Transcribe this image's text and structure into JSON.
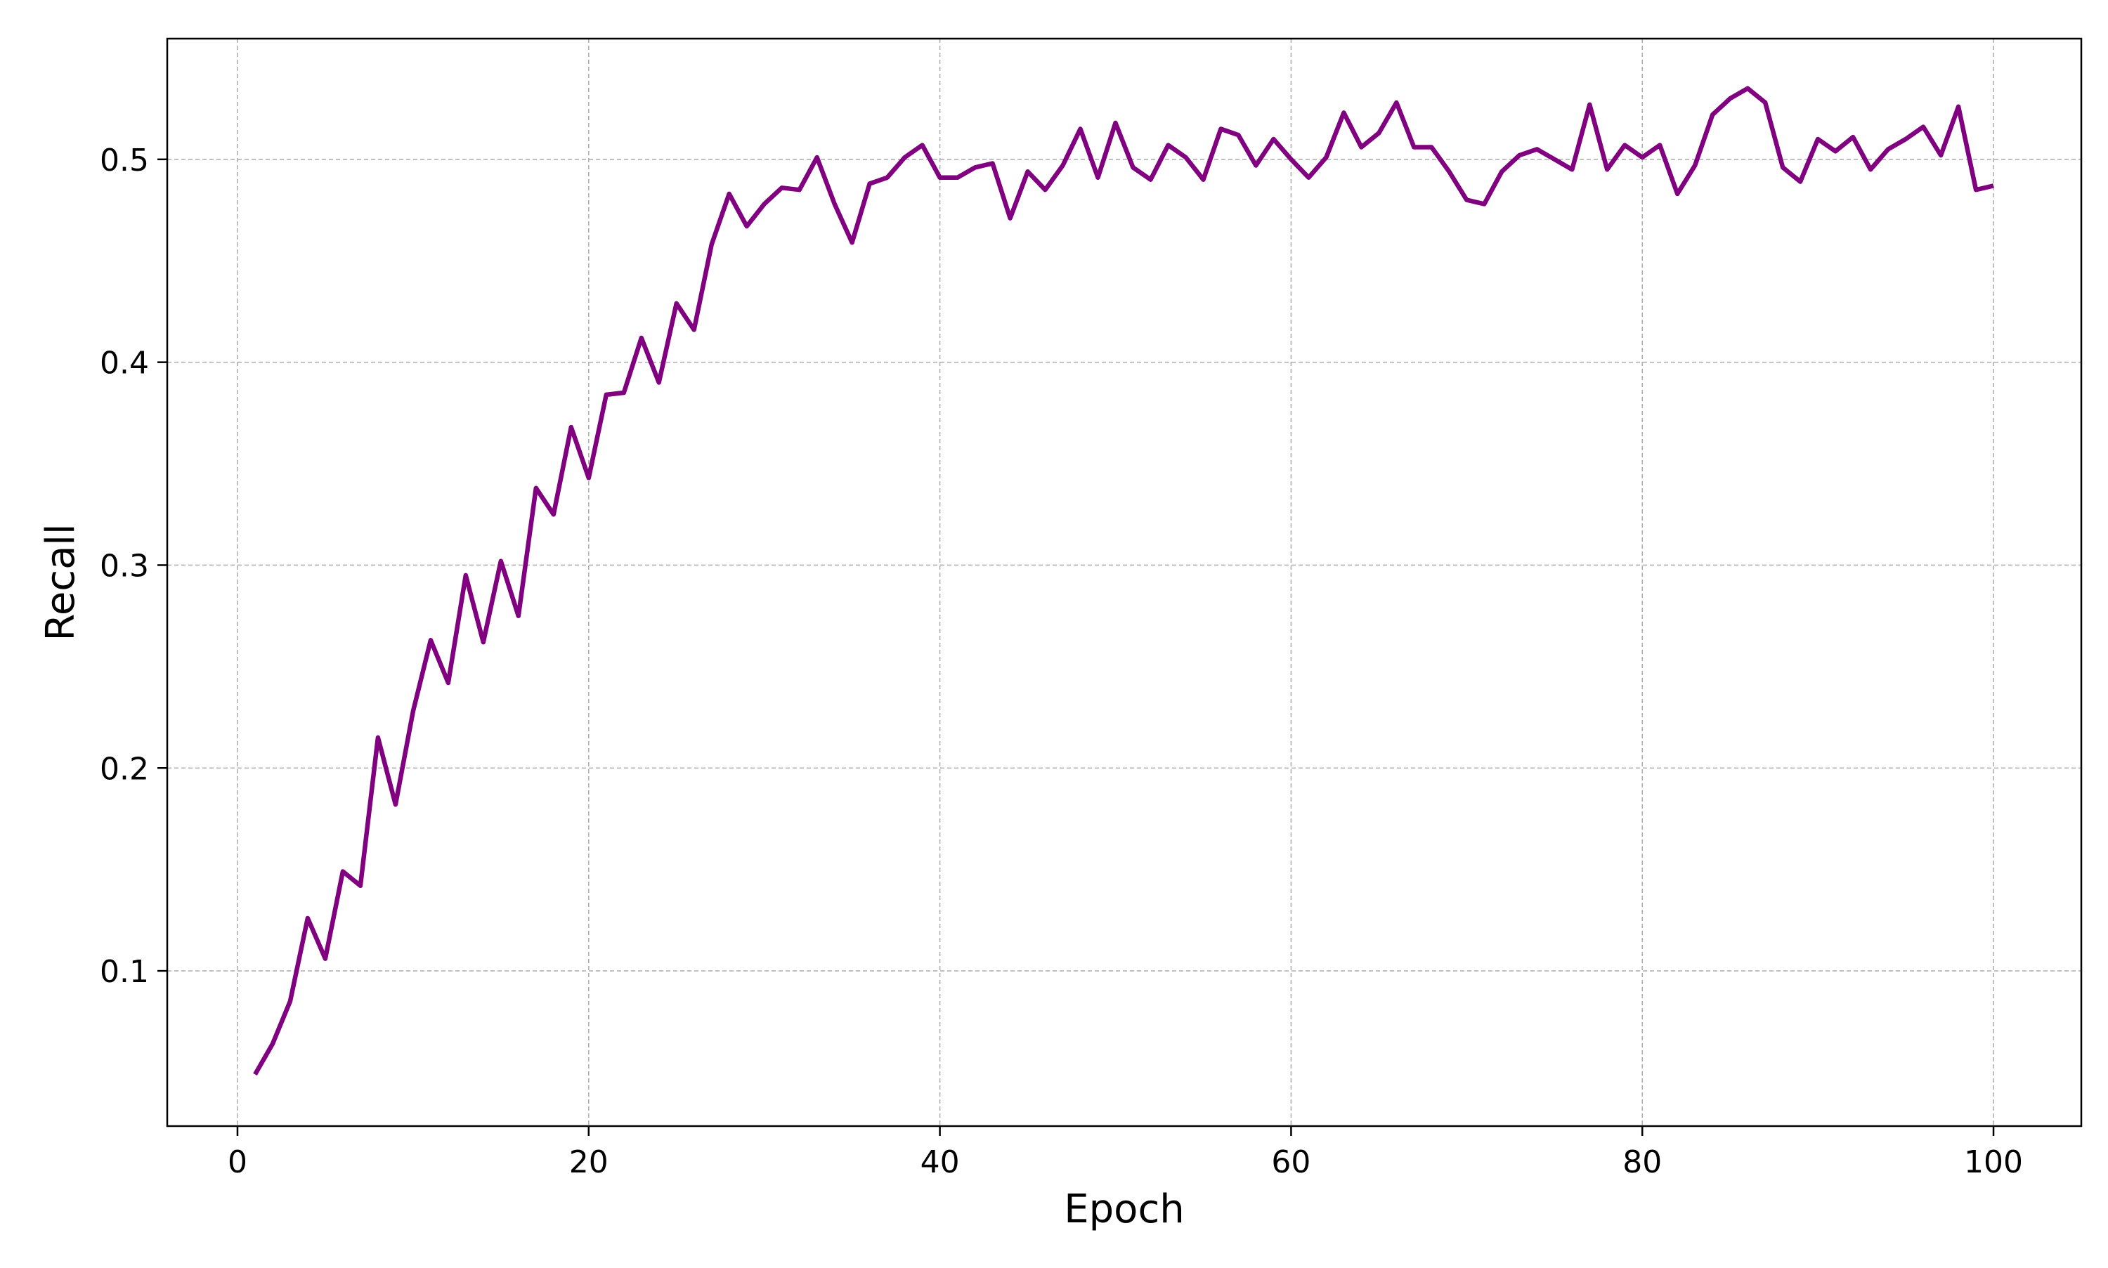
{
  "chart_data": {
    "type": "line",
    "title": "",
    "xlabel": "Epoch",
    "ylabel": "Recall",
    "xlim": [
      -4,
      105
    ],
    "ylim": [
      0.0235,
      0.5595
    ],
    "xticks": [
      0,
      20,
      40,
      60,
      80,
      100
    ],
    "yticks": [
      0.1,
      0.2,
      0.3,
      0.4,
      0.5
    ],
    "xtick_labels": [
      "0",
      "20",
      "40",
      "60",
      "80",
      "100"
    ],
    "ytick_labels": [
      "0.1",
      "0.2",
      "0.3",
      "0.4",
      "0.5"
    ],
    "grid": true,
    "series": [
      {
        "color": "#800080",
        "x": [
          1,
          2,
          3,
          4,
          5,
          6,
          7,
          8,
          9,
          10,
          11,
          12,
          13,
          14,
          15,
          16,
          17,
          18,
          19,
          20,
          21,
          22,
          23,
          24,
          25,
          26,
          27,
          28,
          29,
          30,
          31,
          32,
          33,
          34,
          35,
          36,
          37,
          38,
          39,
          40,
          41,
          42,
          43,
          44,
          45,
          46,
          47,
          48,
          49,
          50,
          51,
          52,
          53,
          54,
          55,
          56,
          57,
          58,
          59,
          60,
          61,
          62,
          63,
          64,
          65,
          66,
          67,
          68,
          69,
          70,
          71,
          72,
          73,
          74,
          75,
          76,
          77,
          78,
          79,
          80,
          81,
          82,
          83,
          84,
          85,
          86,
          87,
          88,
          89,
          90,
          91,
          92,
          93,
          94,
          95,
          96,
          97,
          98,
          99,
          100
        ],
        "y": [
          0.049,
          0.064,
          0.085,
          0.126,
          0.106,
          0.149,
          0.142,
          0.215,
          0.182,
          0.228,
          0.263,
          0.242,
          0.295,
          0.262,
          0.302,
          0.275,
          0.338,
          0.325,
          0.368,
          0.343,
          0.384,
          0.385,
          0.412,
          0.39,
          0.429,
          0.416,
          0.458,
          0.483,
          0.467,
          0.478,
          0.486,
          0.485,
          0.501,
          0.478,
          0.459,
          0.488,
          0.491,
          0.501,
          0.507,
          0.491,
          0.491,
          0.496,
          0.498,
          0.471,
          0.494,
          0.485,
          0.497,
          0.515,
          0.491,
          0.518,
          0.496,
          0.49,
          0.507,
          0.501,
          0.49,
          0.515,
          0.512,
          0.497,
          0.51,
          0.5,
          0.491,
          0.501,
          0.523,
          0.506,
          0.513,
          0.528,
          0.506,
          0.506,
          0.494,
          0.48,
          0.478,
          0.494,
          0.502,
          0.505,
          0.5,
          0.495,
          0.527,
          0.495,
          0.507,
          0.501,
          0.507,
          0.483,
          0.497,
          0.522,
          0.53,
          0.535,
          0.528,
          0.496,
          0.489,
          0.51,
          0.504,
          0.511,
          0.495,
          0.505,
          0.51,
          0.516,
          0.502,
          0.526,
          0.485,
          0.487
        ]
      }
    ]
  }
}
